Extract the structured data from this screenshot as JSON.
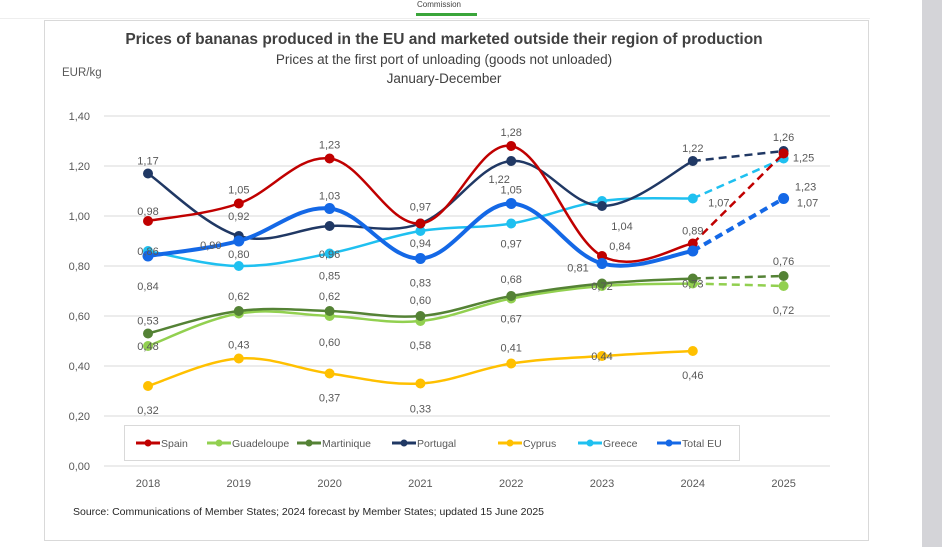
{
  "header": {
    "tab_label": "Commission"
  },
  "chart_data": {
    "type": "line",
    "title": "Prices of bananas produced in the EU and marketed outside their region of production",
    "subtitle": "Prices at the first port of unloading (goods not unloaded)",
    "period": "January-December",
    "ylabel": "EUR/kg",
    "xlabel": "",
    "ylim": [
      0,
      1.4
    ],
    "yticks": [
      "0,00",
      "0,20",
      "0,40",
      "0,60",
      "0,80",
      "1,00",
      "1,20",
      "1,40"
    ],
    "ytick_values": [
      0,
      0.2,
      0.4,
      0.6,
      0.8,
      1.0,
      1.2,
      1.4
    ],
    "grid": true,
    "legend_position": "bottom",
    "categories": [
      "2018",
      "2019",
      "2020",
      "2021",
      "2022",
      "2023",
      "2024",
      "2025"
    ],
    "forecast_from_index": 6,
    "series": [
      {
        "name": "Spain",
        "color": "#c00000",
        "values": [
          0.98,
          1.05,
          1.23,
          0.97,
          1.28,
          0.84,
          0.89,
          1.25
        ],
        "labels": [
          "0,98",
          "1,05",
          "1,23",
          "",
          "1,28",
          "0,84",
          "0,89",
          "1,25"
        ]
      },
      {
        "name": "Guadeloupe",
        "color": "#92d050",
        "values": [
          0.48,
          0.61,
          0.6,
          0.58,
          0.67,
          0.72,
          0.73,
          0.72
        ],
        "labels": [
          "0,48",
          "",
          "0,60",
          "0,58",
          "0,67",
          "0,72",
          "0,73",
          "0,72"
        ]
      },
      {
        "name": "Martinique",
        "color": "#548235",
        "values": [
          0.53,
          0.62,
          0.62,
          0.6,
          0.68,
          0.73,
          0.75,
          0.76
        ],
        "labels": [
          "0,53",
          "0,62",
          "0,62",
          "0,60",
          "0,68",
          "",
          "",
          "0,76"
        ]
      },
      {
        "name": "Portugal",
        "color": "#203864",
        "values": [
          1.17,
          0.92,
          0.96,
          0.97,
          1.22,
          1.04,
          1.22,
          1.26
        ],
        "labels": [
          "1,17",
          "0,92",
          "0,96",
          "0,97",
          "1,22",
          "1,04",
          "1,22",
          "1,26"
        ]
      },
      {
        "name": "Cyprus",
        "color": "#ffc000",
        "values": [
          0.32,
          0.43,
          0.37,
          0.33,
          0.41,
          0.44,
          0.46,
          null
        ],
        "labels": [
          "0,32",
          "0,43",
          "0,37",
          "0,33",
          "0,41",
          "0,44",
          "0,46",
          ""
        ]
      },
      {
        "name": "Greece",
        "color": "#1fc0f0",
        "values": [
          0.86,
          0.8,
          0.85,
          0.94,
          0.97,
          1.06,
          1.07,
          1.23
        ],
        "labels": [
          "0,86",
          "0,80",
          "0,85",
          "0,94",
          "0,97",
          "",
          "1,07",
          "1,23"
        ]
      },
      {
        "name": "Total EU",
        "color": "#1468e6",
        "values": [
          0.84,
          0.9,
          1.03,
          0.83,
          1.05,
          0.81,
          0.86,
          1.07
        ],
        "labels": [
          "0,84",
          "0,90",
          "1,03",
          "0,83",
          "1,05",
          "0,81",
          "",
          "1,07"
        ]
      }
    ],
    "source": "Source: Communications of Member States; 2024 forecast by Member States; updated 15 June 2025"
  }
}
